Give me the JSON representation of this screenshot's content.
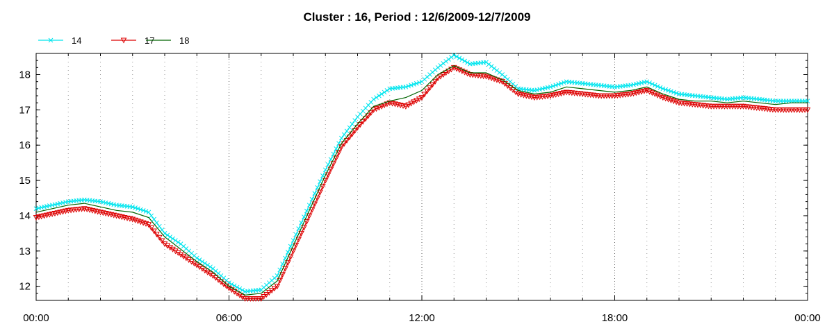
{
  "chart_data": {
    "type": "line",
    "title": "Cluster : 16, Period : 12/6/2009-12/7/2009",
    "xlabel": "",
    "ylabel": "",
    "x_unit": "hours",
    "xlim": [
      0,
      24
    ],
    "ylim": [
      11.6,
      18.6
    ],
    "x_tick_values": [
      0,
      6,
      12,
      18,
      24
    ],
    "x_tick_labels": [
      "00:00",
      "06:00",
      "12:00",
      "18:00",
      "00:00"
    ],
    "y_tick_values": [
      12,
      13,
      14,
      15,
      16,
      17,
      18
    ],
    "y_tick_labels": [
      "12",
      "13",
      "14",
      "15",
      "16",
      "17",
      "18"
    ],
    "grid": "dotted vertical lines every hour, denser at 6-hour marks",
    "legend_position": "top-left",
    "x": [
      0,
      0.5,
      1,
      1.5,
      2,
      2.5,
      3,
      3.5,
      4,
      4.5,
      5,
      5.5,
      6,
      6.5,
      7,
      7.5,
      8,
      8.5,
      9,
      9.5,
      10,
      10.5,
      11,
      11.5,
      12,
      12.5,
      13,
      13.5,
      14,
      14.5,
      15,
      15.5,
      16,
      16.5,
      17,
      17.5,
      18,
      18.5,
      19,
      19.5,
      20,
      20.5,
      21,
      21.5,
      22,
      22.5,
      23,
      23.5,
      24
    ],
    "series": [
      {
        "name": "14",
        "color": "#00e5ee",
        "marker": "x",
        "values": [
          14.2,
          14.3,
          14.4,
          14.45,
          14.4,
          14.3,
          14.25,
          14.1,
          13.5,
          13.2,
          12.8,
          12.5,
          12.1,
          11.85,
          11.9,
          12.3,
          13.3,
          14.3,
          15.3,
          16.2,
          16.8,
          17.3,
          17.6,
          17.65,
          17.8,
          18.2,
          18.55,
          18.3,
          18.35,
          18.0,
          17.6,
          17.55,
          17.65,
          17.8,
          17.75,
          17.7,
          17.65,
          17.7,
          17.8,
          17.6,
          17.45,
          17.4,
          17.35,
          17.3,
          17.35,
          17.3,
          17.25,
          17.25,
          17.25
        ]
      },
      {
        "name": "17",
        "color": "#dd0000",
        "marker": "triangle-down",
        "values": [
          13.95,
          14.05,
          14.15,
          14.2,
          14.1,
          14.0,
          13.9,
          13.75,
          13.2,
          12.9,
          12.6,
          12.3,
          11.95,
          11.65,
          11.65,
          12.0,
          13.0,
          14.0,
          15.0,
          15.95,
          16.5,
          17.0,
          17.2,
          17.1,
          17.35,
          17.9,
          18.2,
          18.0,
          17.95,
          17.8,
          17.45,
          17.35,
          17.4,
          17.5,
          17.45,
          17.4,
          17.4,
          17.45,
          17.55,
          17.35,
          17.2,
          17.15,
          17.1,
          17.1,
          17.1,
          17.05,
          17.0,
          17.0,
          17.0
        ]
      },
      {
        "name": "18",
        "color": "#006400",
        "marker": "none",
        "values": [
          14.1,
          14.2,
          14.3,
          14.35,
          14.25,
          14.15,
          14.1,
          13.95,
          13.4,
          13.05,
          12.7,
          12.4,
          12.0,
          11.75,
          11.8,
          12.15,
          13.15,
          14.15,
          15.15,
          16.05,
          16.6,
          17.1,
          17.25,
          17.35,
          17.55,
          18.0,
          18.25,
          18.05,
          18.05,
          17.85,
          17.55,
          17.45,
          17.5,
          17.65,
          17.6,
          17.55,
          17.5,
          17.55,
          17.65,
          17.45,
          17.3,
          17.25,
          17.25,
          17.2,
          17.25,
          17.2,
          17.15,
          17.2,
          17.2
        ]
      }
    ]
  }
}
